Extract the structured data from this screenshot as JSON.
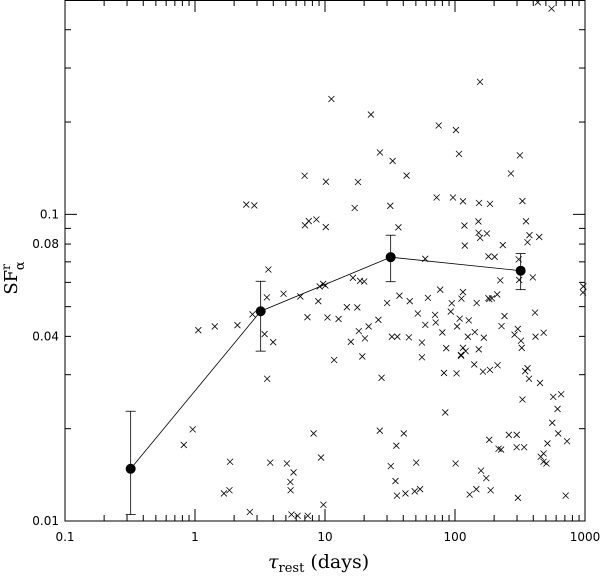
{
  "chart_data": {
    "type": "scatter",
    "title": "",
    "xlabel": "τ",
    "xlabel_sub": "rest",
    "xlabel_units": "(days)",
    "ylabel": "SF",
    "ylabel_sup": "r",
    "ylabel_sub": "α",
    "xscale": "log",
    "yscale": "log",
    "xlim": [
      0.1,
      1000
    ],
    "ylim": [
      0.01,
      0.5
    ],
    "x_ticks": [
      {
        "value": 0.1,
        "label": "0.1"
      },
      {
        "value": 1,
        "label": "1"
      },
      {
        "value": 10,
        "label": "10"
      },
      {
        "value": 100,
        "label": "100"
      },
      {
        "value": 1000,
        "label": "1000"
      }
    ],
    "y_ticks": [
      {
        "value": 0.01,
        "label": "0.01"
      },
      {
        "value": 0.04,
        "label": "0.04"
      },
      {
        "value": 0.08,
        "label": "0.08"
      },
      {
        "value": 0.1,
        "label": "0.1"
      }
    ],
    "grid": false,
    "series": [
      {
        "marker": "cross",
        "points": [
          [
            0.82,
            0.0177
          ],
          [
            0.96,
            0.0199
          ],
          [
            1.06,
            0.0419
          ],
          [
            1.42,
            0.0431
          ],
          [
            1.67,
            0.0123
          ],
          [
            1.84,
            0.0126
          ],
          [
            1.86,
            0.0156
          ],
          [
            2.12,
            0.0435
          ],
          [
            2.48,
            0.1076
          ],
          [
            2.64,
            0.0107
          ],
          [
            2.77,
            0.0472
          ],
          [
            2.86,
            0.1069
          ],
          [
            3.43,
            0.0407
          ],
          [
            3.57,
            0.0536
          ],
          [
            3.59,
            0.0291
          ],
          [
            3.67,
            0.0661
          ],
          [
            3.79,
            0.0155
          ],
          [
            3.99,
            0.0383
          ],
          [
            4.8,
            0.0551
          ],
          [
            5.09,
            0.0154
          ],
          [
            5.42,
            0.0134
          ],
          [
            5.44,
            0.0126
          ],
          [
            5.52,
            0.0105
          ],
          [
            5.73,
            0.0144
          ],
          [
            6.16,
            0.0104
          ],
          [
            6.46,
            0.054
          ],
          [
            6.97,
            0.1336
          ],
          [
            7.01,
            0.0921
          ],
          [
            7.33,
            0.0462
          ],
          [
            7.37,
            0.0104
          ],
          [
            7.5,
            0.0951
          ],
          [
            8.17,
            0.0193
          ],
          [
            8.59,
            0.0962
          ],
          [
            8.88,
            0.0521
          ],
          [
            9.1,
            0.0582
          ],
          [
            9.32,
            0.0161
          ],
          [
            9.68,
            0.0593
          ],
          [
            9.72,
            0.0113
          ],
          [
            10.06,
            0.0586
          ],
          [
            10.14,
            0.0909
          ],
          [
            10.17,
            0.1278
          ],
          [
            10.45,
            0.0461
          ],
          [
            11.2,
            0.2378
          ],
          [
            11.76,
            0.0335
          ],
          [
            12.71,
            0.0456
          ],
          [
            14.73,
            0.0498
          ],
          [
            15.81,
            0.0384
          ],
          [
            16.4,
            0.0621
          ],
          [
            16.91,
            0.1049
          ],
          [
            17.72,
            0.0497
          ],
          [
            17.94,
            0.1275
          ],
          [
            18.21,
            0.0416
          ],
          [
            18.61,
            0.0607
          ],
          [
            19.36,
            0.0344
          ],
          [
            20.02,
            0.0604
          ],
          [
            20.29,
            0.0394
          ],
          [
            21.66,
            0.0431
          ],
          [
            22.55,
            0.2115
          ],
          [
            25.75,
            0.0453
          ],
          [
            26.39,
            0.0197
          ],
          [
            26.45,
            0.1591
          ],
          [
            27.23,
            0.0293
          ],
          [
            30.05,
            0.0514
          ],
          [
            31.77,
            0.1066
          ],
          [
            32.07,
            0.0151
          ],
          [
            32.71,
            0.0399
          ],
          [
            33.14,
            0.1493
          ],
          [
            34.84,
            0.0135
          ],
          [
            35.37,
            0.0176
          ],
          [
            35.78,
            0.0121
          ],
          [
            36.02,
            0.0399
          ],
          [
            36.72,
            0.0907
          ],
          [
            37.38,
            0.0543
          ],
          [
            40.41,
            0.0193
          ],
          [
            41.55,
            0.0123
          ],
          [
            42.42,
            0.1338
          ],
          [
            44.19,
            0.0397
          ],
          [
            44.89,
            0.0521
          ],
          [
            48.97,
            0.0125
          ],
          [
            50.34,
            0.0155
          ],
          [
            51.77,
            0.0475
          ],
          [
            53.9,
            0.0127
          ],
          [
            55.66,
            0.0342
          ],
          [
            55.69,
            0.0382
          ],
          [
            59.01,
            0.0716
          ],
          [
            59.08,
            0.0436
          ],
          [
            61.9,
            0.0534
          ],
          [
            70.23,
            0.047
          ],
          [
            71.09,
            0.0444
          ],
          [
            72.24,
            0.1135
          ],
          [
            74.94,
            0.1949
          ],
          [
            76.96,
            0.0568
          ],
          [
            79.94,
            0.0412
          ],
          [
            82.28,
            0.0304
          ],
          [
            84.13,
            0.0226
          ],
          [
            85.62,
            0.0366
          ],
          [
            92.82,
            0.0482
          ],
          [
            94.39,
            0.0513
          ],
          [
            96.49,
            0.1135
          ],
          [
            101.08,
            0.0154
          ],
          [
            101.66,
            0.1883
          ],
          [
            102.82,
            0.0303
          ],
          [
            103.84,
            0.0431
          ],
          [
            107.36,
            0.1575
          ],
          [
            108.6,
            0.0457
          ],
          [
            111.09,
            0.0348
          ],
          [
            111.51,
            0.0346
          ],
          [
            112.06,
            0.0531
          ],
          [
            115.12,
            0.0367
          ],
          [
            115.15,
            0.0558
          ],
          [
            115.18,
            0.1103
          ],
          [
            118.19,
            0.0919
          ],
          [
            118.94,
            0.0791
          ],
          [
            120.73,
            0.0358
          ],
          [
            125.58,
            0.0399
          ],
          [
            127.61,
            0.0451
          ],
          [
            129.56,
            0.0122
          ],
          [
            140.6,
            0.0324
          ],
          [
            142.01,
            0.0413
          ],
          [
            145.96,
            0.0127
          ],
          [
            146.78,
            0.0514
          ],
          [
            151.35,
            0.0948
          ],
          [
            151.92,
            0.0871
          ],
          [
            152.28,
            0.0363
          ],
          [
            153.09,
            0.1089
          ],
          [
            155.85,
            0.2704
          ],
          [
            156.04,
            0.0838
          ],
          [
            158.54,
            0.0146
          ],
          [
            164.06,
            0.0307
          ],
          [
            166.65,
            0.0396
          ],
          [
            174.04,
            0.0138
          ],
          [
            175.98,
            0.0866
          ],
          [
            180.63,
            0.0533
          ],
          [
            180.82,
            0.0729
          ],
          [
            183.4,
            0.0184
          ],
          [
            183.44,
            0.0529
          ],
          [
            185.68,
            0.0311
          ],
          [
            185.87,
            0.1082
          ],
          [
            188.01,
            0.0126
          ],
          [
            192.53,
            0.0532
          ],
          [
            201.79,
            0.0727
          ],
          [
            211.29,
            0.0548
          ],
          [
            212.44,
            0.0322
          ],
          [
            216.3,
            0.0172
          ],
          [
            222.99,
            0.0609
          ],
          [
            226.25,
            0.0171
          ],
          [
            227.98,
            0.0432
          ],
          [
            233.3,
            0.0794
          ],
          [
            240.42,
            0.0466
          ],
          [
            259.54,
            0.0191
          ],
          [
            269.11,
            0.1359
          ],
          [
            287.12,
            0.0405
          ],
          [
            298.28,
            0.0174
          ],
          [
            298.46,
            0.0191
          ],
          [
            304.18,
            0.0423
          ],
          [
            304.67,
            0.0119
          ],
          [
            309.04,
            0.0713
          ],
          [
            311.51,
            0.0611
          ],
          [
            315.49,
            0.1557
          ],
          [
            321.55,
            0.0387
          ],
          [
            326.18,
            0.0367
          ],
          [
            330.16,
            0.1105
          ],
          [
            330.41,
            0.0249
          ],
          [
            340.43,
            0.0174
          ],
          [
            346.71,
            0.0308
          ],
          [
            351.74,
            0.0949
          ],
          [
            361.12,
            0.0811
          ],
          [
            361.31,
            0.0315
          ],
          [
            371.06,
            0.0291
          ],
          [
            373.71,
            0.0855
          ],
          [
            396.92,
            0.0623
          ],
          [
            412.79,
            0.0478
          ],
          [
            416.37,
            0.0399
          ],
          [
            433.35,
            0.4913
          ],
          [
            444.56,
            0.0844
          ],
          [
            450.71,
            0.0282
          ],
          [
            456.58,
            0.0162
          ],
          [
            479.43,
            0.0156
          ],
          [
            480.06,
            0.0166
          ],
          [
            480.73,
            0.0411
          ],
          [
            505.43,
            0.0154
          ],
          [
            514.3,
            0.0179
          ],
          [
            553.26,
            0.4687
          ],
          [
            560.08,
            0.0209
          ],
          [
            569.6,
            0.0254
          ],
          [
            614.89,
            0.0232
          ],
          [
            621.99,
            0.0193
          ],
          [
            655.38,
            0.0259
          ],
          [
            710.3,
            0.0121
          ],
          [
            727.61,
            0.0182
          ],
          [
            964.75,
            0.0556
          ],
          [
            970.55,
            0.0582
          ]
        ]
      },
      {
        "marker": "filled-circle",
        "line": true,
        "points": [
          {
            "x": 0.32,
            "y": 0.0148,
            "low": 0.0105,
            "high": 0.0228
          },
          {
            "x": 3.2,
            "y": 0.0483,
            "low": 0.0358,
            "high": 0.0605
          },
          {
            "x": 32,
            "y": 0.0725,
            "low": 0.0603,
            "high": 0.0855
          },
          {
            "x": 320,
            "y": 0.0655,
            "low": 0.0568,
            "high": 0.0745
          }
        ]
      }
    ]
  }
}
